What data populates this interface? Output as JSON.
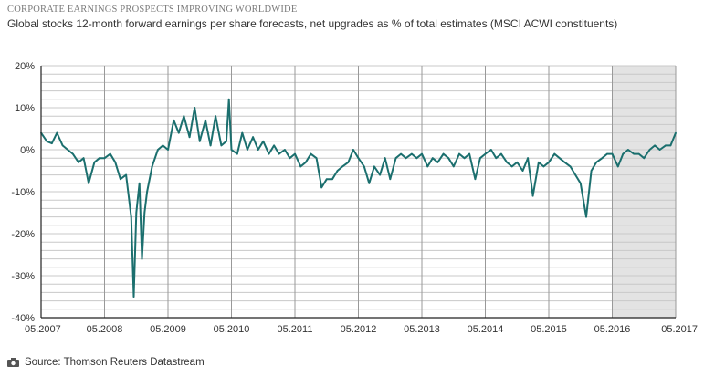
{
  "kicker": "CORPORATE EARNINGS PROSPECTS IMPROVING WORLDWIDE",
  "subtitle": "Global stocks 12-month forward earnings per share forecasts, net upgrades as % of total estimates (MSCI ACWI constituents)",
  "source": "Source: Thomson Reuters Datastream",
  "icons": {
    "source": "camera-icon"
  },
  "colors": {
    "line": "#1b6f6e",
    "shade": "#e3e3e3",
    "axis": "#222222",
    "grid": "#c8c8c8",
    "year_line": "#999999"
  },
  "chart_data": {
    "type": "line",
    "title": "",
    "xlabel": "",
    "ylabel": "",
    "ylim": [
      -40,
      20
    ],
    "xlim": [
      2007.33,
      2017.33
    ],
    "grid": "horizontal every 2%",
    "y_ticks": [
      {
        "value": 20,
        "label": "20%"
      },
      {
        "value": 10,
        "label": "10%"
      },
      {
        "value": 0,
        "label": "0%"
      },
      {
        "value": -10,
        "label": "-10%"
      },
      {
        "value": -20,
        "label": "-20%"
      },
      {
        "value": -30,
        "label": "-30%"
      },
      {
        "value": -40,
        "label": "-40%"
      }
    ],
    "x_ticks": [
      {
        "value": 2007.33,
        "label": "05.2007"
      },
      {
        "value": 2008.33,
        "label": "05.2008"
      },
      {
        "value": 2009.33,
        "label": "05.2009"
      },
      {
        "value": 2010.33,
        "label": "05.2010"
      },
      {
        "value": 2011.33,
        "label": "05.2011"
      },
      {
        "value": 2012.33,
        "label": "05.2012"
      },
      {
        "value": 2013.33,
        "label": "05.2013"
      },
      {
        "value": 2014.33,
        "label": "05.2014"
      },
      {
        "value": 2015.33,
        "label": "05.2015"
      },
      {
        "value": 2016.33,
        "label": "05.2016"
      },
      {
        "value": 2017.33,
        "label": "05.2017"
      }
    ],
    "shaded_region": [
      2016.33,
      2017.33
    ],
    "series": [
      {
        "points": [
          [
            2007.33,
            4
          ],
          [
            2007.42,
            2
          ],
          [
            2007.5,
            1.5
          ],
          [
            2007.58,
            4
          ],
          [
            2007.67,
            1
          ],
          [
            2007.75,
            0
          ],
          [
            2007.83,
            -1
          ],
          [
            2007.92,
            -3
          ],
          [
            2008.0,
            -2
          ],
          [
            2008.08,
            -8
          ],
          [
            2008.17,
            -3
          ],
          [
            2008.25,
            -2
          ],
          [
            2008.33,
            -2
          ],
          [
            2008.42,
            -1
          ],
          [
            2008.5,
            -3
          ],
          [
            2008.58,
            -7
          ],
          [
            2008.67,
            -6
          ],
          [
            2008.75,
            -16
          ],
          [
            2008.79,
            -35
          ],
          [
            2008.83,
            -15
          ],
          [
            2008.88,
            -8
          ],
          [
            2008.92,
            -26
          ],
          [
            2008.96,
            -15
          ],
          [
            2009.0,
            -10
          ],
          [
            2009.08,
            -4
          ],
          [
            2009.17,
            0
          ],
          [
            2009.25,
            1
          ],
          [
            2009.33,
            0
          ],
          [
            2009.42,
            7
          ],
          [
            2009.5,
            4
          ],
          [
            2009.58,
            8
          ],
          [
            2009.67,
            3
          ],
          [
            2009.75,
            10
          ],
          [
            2009.83,
            2
          ],
          [
            2009.92,
            7
          ],
          [
            2010.0,
            1
          ],
          [
            2010.08,
            8
          ],
          [
            2010.17,
            1
          ],
          [
            2010.25,
            2
          ],
          [
            2010.29,
            12
          ],
          [
            2010.33,
            0
          ],
          [
            2010.42,
            -1
          ],
          [
            2010.5,
            4
          ],
          [
            2010.58,
            0
          ],
          [
            2010.67,
            3
          ],
          [
            2010.75,
            0
          ],
          [
            2010.83,
            2
          ],
          [
            2010.92,
            -1
          ],
          [
            2011.0,
            1
          ],
          [
            2011.08,
            -1
          ],
          [
            2011.17,
            0
          ],
          [
            2011.25,
            -2
          ],
          [
            2011.33,
            -1
          ],
          [
            2011.42,
            -4
          ],
          [
            2011.5,
            -3
          ],
          [
            2011.58,
            -1
          ],
          [
            2011.67,
            -2
          ],
          [
            2011.75,
            -9
          ],
          [
            2011.83,
            -7
          ],
          [
            2011.92,
            -7
          ],
          [
            2012.0,
            -5
          ],
          [
            2012.08,
            -4
          ],
          [
            2012.17,
            -3
          ],
          [
            2012.25,
            0
          ],
          [
            2012.33,
            -2
          ],
          [
            2012.42,
            -4
          ],
          [
            2012.5,
            -8
          ],
          [
            2012.58,
            -4
          ],
          [
            2012.67,
            -6
          ],
          [
            2012.75,
            -2
          ],
          [
            2012.83,
            -7
          ],
          [
            2012.92,
            -2
          ],
          [
            2013.0,
            -1
          ],
          [
            2013.08,
            -2
          ],
          [
            2013.17,
            -1
          ],
          [
            2013.25,
            -2
          ],
          [
            2013.33,
            -1
          ],
          [
            2013.42,
            -4
          ],
          [
            2013.5,
            -2
          ],
          [
            2013.58,
            -3
          ],
          [
            2013.67,
            -1
          ],
          [
            2013.75,
            -2
          ],
          [
            2013.83,
            -4
          ],
          [
            2013.92,
            -1
          ],
          [
            2014.0,
            -2
          ],
          [
            2014.08,
            -1
          ],
          [
            2014.17,
            -7
          ],
          [
            2014.25,
            -2
          ],
          [
            2014.33,
            -1
          ],
          [
            2014.42,
            0
          ],
          [
            2014.5,
            -2
          ],
          [
            2014.58,
            -1
          ],
          [
            2014.67,
            -3
          ],
          [
            2014.75,
            -4
          ],
          [
            2014.83,
            -3
          ],
          [
            2014.92,
            -5
          ],
          [
            2015.0,
            -2
          ],
          [
            2015.08,
            -11
          ],
          [
            2015.17,
            -3
          ],
          [
            2015.25,
            -4
          ],
          [
            2015.33,
            -3
          ],
          [
            2015.42,
            -1
          ],
          [
            2015.5,
            -2
          ],
          [
            2015.58,
            -3
          ],
          [
            2015.67,
            -4
          ],
          [
            2015.75,
            -6
          ],
          [
            2015.83,
            -8
          ],
          [
            2015.92,
            -16
          ],
          [
            2016.0,
            -5
          ],
          [
            2016.08,
            -3
          ],
          [
            2016.17,
            -2
          ],
          [
            2016.25,
            -1
          ],
          [
            2016.33,
            -1
          ],
          [
            2016.42,
            -4
          ],
          [
            2016.5,
            -1
          ],
          [
            2016.58,
            0
          ],
          [
            2016.67,
            -1
          ],
          [
            2016.75,
            -1
          ],
          [
            2016.83,
            -2
          ],
          [
            2016.92,
            0
          ],
          [
            2017.0,
            1
          ],
          [
            2017.08,
            0
          ],
          [
            2017.17,
            1
          ],
          [
            2017.25,
            1
          ],
          [
            2017.33,
            4
          ]
        ]
      }
    ]
  }
}
